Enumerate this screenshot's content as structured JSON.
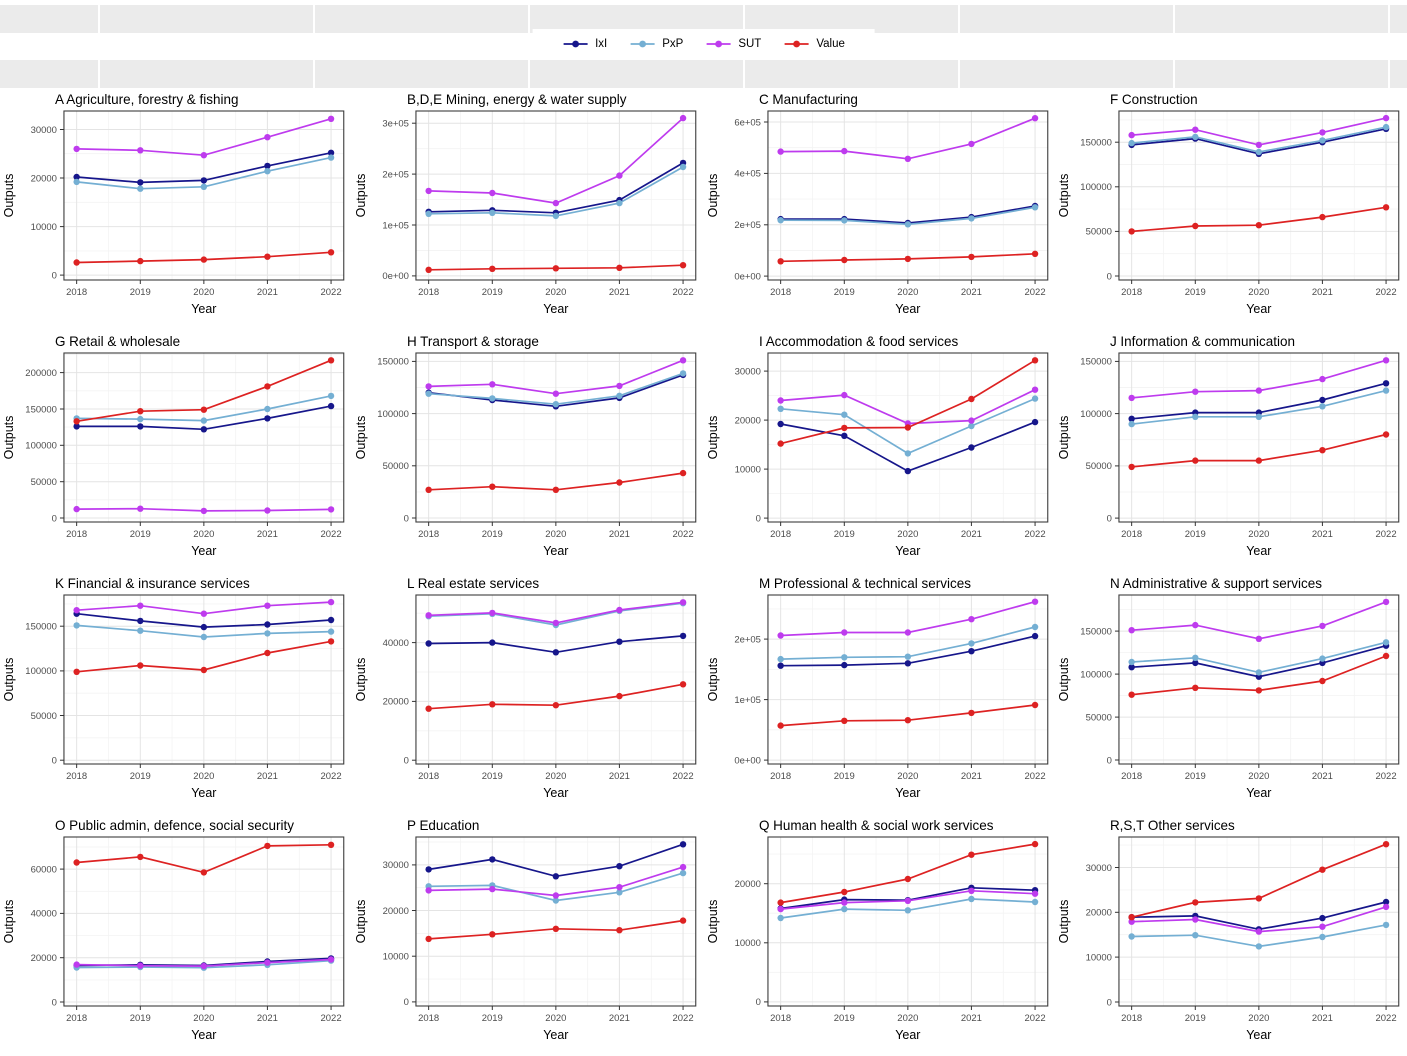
{
  "header": {
    "strip_color": "#EBEBEB"
  },
  "legend": {
    "items": [
      {
        "label": "IxI",
        "color": "#16168B"
      },
      {
        "label": "PxP",
        "color": "#74AFD3"
      },
      {
        "label": "SUT",
        "color": "#BE3BEE"
      },
      {
        "label": "Value",
        "color": "#DD2222"
      }
    ],
    "position": "top-center"
  },
  "chart_data": [
    {
      "type": "line",
      "title": "A Agriculture, forestry & fishing",
      "x": [
        2018,
        2019,
        2020,
        2021,
        2022
      ],
      "xlabel": "Year",
      "ylabel": "Outputs",
      "ylim": [
        -1000,
        33800
      ],
      "yticks": [
        0,
        10000,
        20000,
        30000
      ],
      "ytick_labels": [
        "0",
        "10000",
        "20000",
        "30000"
      ],
      "grid": true,
      "series": [
        {
          "name": "IxI",
          "values": [
            20200,
            19100,
            19500,
            22500,
            25200
          ]
        },
        {
          "name": "PxP",
          "values": [
            19200,
            17800,
            18200,
            21400,
            24200
          ]
        },
        {
          "name": "SUT",
          "values": [
            26000,
            25700,
            24700,
            28400,
            32200
          ]
        },
        {
          "name": "Value",
          "values": [
            2600,
            2900,
            3200,
            3800,
            4700
          ]
        }
      ]
    },
    {
      "type": "line",
      "title": "B,D,E Mining, energy & water supply",
      "x": [
        2018,
        2019,
        2020,
        2021,
        2022
      ],
      "xlabel": "Year",
      "ylabel": "Outputs",
      "ylim": [
        -8000,
        324000
      ],
      "yticks": [
        0,
        100000,
        200000,
        300000
      ],
      "ytick_labels": [
        "0e+00",
        "1e+05",
        "2e+05",
        "3e+05"
      ],
      "grid": true,
      "series": [
        {
          "name": "IxI",
          "values": [
            126000,
            129000,
            124000,
            149000,
            222000
          ]
        },
        {
          "name": "PxP",
          "values": [
            122000,
            124000,
            118000,
            143000,
            214000
          ]
        },
        {
          "name": "SUT",
          "values": [
            167000,
            163000,
            143000,
            197000,
            310000
          ]
        },
        {
          "name": "Value",
          "values": [
            12000,
            14000,
            15000,
            16000,
            21000
          ]
        }
      ]
    },
    {
      "type": "line",
      "title": "C Manufacturing",
      "x": [
        2018,
        2019,
        2020,
        2021,
        2022
      ],
      "xlabel": "Year",
      "ylabel": "Outputs",
      "ylim": [
        -15000,
        643000
      ],
      "yticks": [
        0,
        200000,
        400000,
        600000
      ],
      "ytick_labels": [
        "0e+00",
        "2e+05",
        "4e+05",
        "6e+05"
      ],
      "grid": true,
      "series": [
        {
          "name": "IxI",
          "values": [
            222000,
            222000,
            207000,
            230000,
            273000
          ]
        },
        {
          "name": "PxP",
          "values": [
            218000,
            217000,
            202000,
            225000,
            268000
          ]
        },
        {
          "name": "SUT",
          "values": [
            485000,
            487000,
            457000,
            515000,
            615000
          ]
        },
        {
          "name": "Value",
          "values": [
            58000,
            63000,
            67000,
            75000,
            87000
          ]
        }
      ]
    },
    {
      "type": "line",
      "title": "F Construction",
      "x": [
        2018,
        2019,
        2020,
        2021,
        2022
      ],
      "xlabel": "Year",
      "ylabel": "Outputs",
      "ylim": [
        -4500,
        185000
      ],
      "yticks": [
        0,
        50000,
        100000,
        150000
      ],
      "ytick_labels": [
        "0",
        "50000",
        "100000",
        "150000"
      ],
      "grid": true,
      "series": [
        {
          "name": "IxI",
          "values": [
            147000,
            154000,
            137000,
            150000,
            165000
          ]
        },
        {
          "name": "PxP",
          "values": [
            149000,
            156000,
            139000,
            152000,
            167000
          ]
        },
        {
          "name": "SUT",
          "values": [
            158000,
            164000,
            147000,
            161000,
            177000
          ]
        },
        {
          "name": "Value",
          "values": [
            50000,
            56000,
            57000,
            66000,
            77000
          ]
        }
      ]
    },
    {
      "type": "line",
      "title": "G Retail & wholesale",
      "x": [
        2018,
        2019,
        2020,
        2021,
        2022
      ],
      "xlabel": "Year",
      "ylabel": "Outputs",
      "ylim": [
        -5500,
        227000
      ],
      "yticks": [
        0,
        50000,
        100000,
        150000,
        200000
      ],
      "ytick_labels": [
        "0",
        "50000",
        "100000",
        "150000",
        "200000"
      ],
      "grid": true,
      "series": [
        {
          "name": "IxI",
          "values": [
            126000,
            126000,
            122000,
            137000,
            154000
          ]
        },
        {
          "name": "PxP",
          "values": [
            137000,
            136000,
            134000,
            150000,
            168000
          ]
        },
        {
          "name": "SUT",
          "values": [
            12300,
            12800,
            9800,
            10300,
            11800
          ]
        },
        {
          "name": "Value",
          "values": [
            133000,
            147000,
            149000,
            181000,
            217000
          ]
        }
      ]
    },
    {
      "type": "line",
      "title": "H Transport & storage",
      "x": [
        2018,
        2019,
        2020,
        2021,
        2022
      ],
      "xlabel": "Year",
      "ylabel": "Outputs",
      "ylim": [
        -3800,
        158000
      ],
      "yticks": [
        0,
        50000,
        100000,
        150000
      ],
      "ytick_labels": [
        "0",
        "50000",
        "100000",
        "150000"
      ],
      "grid": true,
      "series": [
        {
          "name": "IxI",
          "values": [
            120000,
            113000,
            107000,
            115000,
            137000
          ]
        },
        {
          "name": "PxP",
          "values": [
            119000,
            114500,
            109000,
            117000,
            138500
          ]
        },
        {
          "name": "SUT",
          "values": [
            126000,
            128000,
            119000,
            126500,
            151000
          ]
        },
        {
          "name": "Value",
          "values": [
            27000,
            30000,
            27000,
            34000,
            43000
          ]
        }
      ]
    },
    {
      "type": "line",
      "title": "I Accommodation & food services",
      "x": [
        2018,
        2019,
        2020,
        2021,
        2022
      ],
      "xlabel": "Year",
      "ylabel": "Outputs",
      "ylim": [
        -800,
        33700
      ],
      "yticks": [
        0,
        10000,
        20000,
        30000
      ],
      "ytick_labels": [
        "0",
        "10000",
        "20000",
        "30000"
      ],
      "grid": true,
      "series": [
        {
          "name": "IxI",
          "values": [
            19200,
            16800,
            9600,
            14400,
            19600
          ]
        },
        {
          "name": "PxP",
          "values": [
            22300,
            21100,
            13200,
            18800,
            24400
          ]
        },
        {
          "name": "SUT",
          "values": [
            24000,
            25100,
            19300,
            19900,
            26200
          ]
        },
        {
          "name": "Value",
          "values": [
            15200,
            18400,
            18500,
            24300,
            32200
          ]
        }
      ]
    },
    {
      "type": "line",
      "title": "J Information & communication",
      "x": [
        2018,
        2019,
        2020,
        2021,
        2022
      ],
      "xlabel": "Year",
      "ylabel": "Outputs",
      "ylim": [
        -3700,
        158000
      ],
      "yticks": [
        0,
        50000,
        100000,
        150000
      ],
      "ytick_labels": [
        "0",
        "50000",
        "100000",
        "150000"
      ],
      "grid": true,
      "series": [
        {
          "name": "IxI",
          "values": [
            95000,
            101000,
            101000,
            113000,
            129000
          ]
        },
        {
          "name": "PxP",
          "values": [
            90000,
            97000,
            97000,
            107000,
            122000
          ]
        },
        {
          "name": "SUT",
          "values": [
            115000,
            121000,
            122000,
            133000,
            151000
          ]
        },
        {
          "name": "Value",
          "values": [
            49000,
            55000,
            55000,
            65000,
            80000
          ]
        }
      ]
    },
    {
      "type": "line",
      "title": "K Financial & insurance services",
      "x": [
        2018,
        2019,
        2020,
        2021,
        2022
      ],
      "xlabel": "Year",
      "ylabel": "Outputs",
      "ylim": [
        -4300,
        185000
      ],
      "yticks": [
        0,
        50000,
        100000,
        150000
      ],
      "ytick_labels": [
        "0",
        "50000",
        "100000",
        "150000"
      ],
      "grid": true,
      "series": [
        {
          "name": "IxI",
          "values": [
            164000,
            156000,
            149000,
            152000,
            157000
          ]
        },
        {
          "name": "PxP",
          "values": [
            151000,
            145000,
            138000,
            142000,
            144000
          ]
        },
        {
          "name": "SUT",
          "values": [
            168000,
            173000,
            164000,
            173000,
            177000
          ]
        },
        {
          "name": "Value",
          "values": [
            99000,
            106000,
            101000,
            120000,
            133000
          ]
        }
      ]
    },
    {
      "type": "line",
      "title": "L Real estate services",
      "x": [
        2018,
        2019,
        2020,
        2021,
        2022
      ],
      "xlabel": "Year",
      "ylabel": "Outputs",
      "ylim": [
        -1300,
        56200
      ],
      "yticks": [
        0,
        20000,
        40000
      ],
      "ytick_labels": [
        "0",
        "20000",
        "40000"
      ],
      "grid": true,
      "series": [
        {
          "name": "IxI",
          "values": [
            39700,
            40000,
            36700,
            40300,
            42300
          ]
        },
        {
          "name": "PxP",
          "values": [
            49000,
            49800,
            46000,
            50800,
            53400
          ]
        },
        {
          "name": "SUT",
          "values": [
            49300,
            50100,
            46700,
            51100,
            53700
          ]
        },
        {
          "name": "Value",
          "values": [
            17500,
            19000,
            18700,
            21800,
            25800
          ]
        }
      ]
    },
    {
      "type": "line",
      "title": "M Professional & technical services",
      "x": [
        2018,
        2019,
        2020,
        2021,
        2022
      ],
      "xlabel": "Year",
      "ylabel": "Outputs",
      "ylim": [
        -6500,
        273000
      ],
      "yticks": [
        0,
        100000,
        200000
      ],
      "ytick_labels": [
        "0e+00",
        "1e+05",
        "2e+05"
      ],
      "grid": true,
      "series": [
        {
          "name": "IxI",
          "values": [
            156000,
            157000,
            160000,
            180000,
            205000
          ]
        },
        {
          "name": "PxP",
          "values": [
            167000,
            170000,
            171000,
            193000,
            220000
          ]
        },
        {
          "name": "SUT",
          "values": [
            206000,
            211000,
            211000,
            233000,
            262000
          ]
        },
        {
          "name": "Value",
          "values": [
            57000,
            65000,
            66000,
            78000,
            91000
          ]
        }
      ]
    },
    {
      "type": "line",
      "title": "N Administrative & support services",
      "x": [
        2018,
        2019,
        2020,
        2021,
        2022
      ],
      "xlabel": "Year",
      "ylabel": "Outputs",
      "ylim": [
        -4600,
        192000
      ],
      "yticks": [
        0,
        50000,
        100000,
        150000
      ],
      "ytick_labels": [
        "0",
        "50000",
        "100000",
        "150000"
      ],
      "grid": true,
      "series": [
        {
          "name": "IxI",
          "values": [
            108000,
            113000,
            97000,
            113000,
            133000
          ]
        },
        {
          "name": "PxP",
          "values": [
            114000,
            119000,
            102000,
            118000,
            137000
          ]
        },
        {
          "name": "SUT",
          "values": [
            151000,
            157000,
            141000,
            156000,
            184000
          ]
        },
        {
          "name": "Value",
          "values": [
            76000,
            84000,
            81000,
            92000,
            121000
          ]
        }
      ]
    },
    {
      "type": "line",
      "title": "O Public admin, defence, social security",
      "x": [
        2018,
        2019,
        2020,
        2021,
        2022
      ],
      "xlabel": "Year",
      "ylabel": "Outputs",
      "ylim": [
        -1800,
        74500
      ],
      "yticks": [
        0,
        20000,
        40000,
        60000
      ],
      "ytick_labels": [
        "0",
        "20000",
        "40000",
        "60000"
      ],
      "grid": true,
      "series": [
        {
          "name": "IxI",
          "values": [
            16500,
            16800,
            16500,
            18300,
            19700
          ]
        },
        {
          "name": "PxP",
          "values": [
            15600,
            15800,
            15500,
            16800,
            18700
          ]
        },
        {
          "name": "SUT",
          "values": [
            16900,
            16400,
            16200,
            17800,
            19200
          ]
        },
        {
          "name": "Value",
          "values": [
            63000,
            65500,
            58500,
            70500,
            71000
          ]
        }
      ]
    },
    {
      "type": "line",
      "title": "P Education",
      "x": [
        2018,
        2019,
        2020,
        2021,
        2022
      ],
      "xlabel": "Year",
      "ylabel": "Outputs",
      "ylim": [
        -900,
        36100
      ],
      "yticks": [
        0,
        10000,
        20000,
        30000
      ],
      "ytick_labels": [
        "0",
        "10000",
        "20000",
        "30000"
      ],
      "grid": true,
      "series": [
        {
          "name": "IxI",
          "values": [
            29000,
            31200,
            27500,
            29700,
            34500
          ]
        },
        {
          "name": "PxP",
          "values": [
            25300,
            25500,
            22200,
            24000,
            28200
          ]
        },
        {
          "name": "SUT",
          "values": [
            24400,
            24700,
            23300,
            25100,
            29500
          ]
        },
        {
          "name": "Value",
          "values": [
            13800,
            14800,
            16000,
            15700,
            17800
          ]
        }
      ]
    },
    {
      "type": "line",
      "title": "Q Human health & social work services",
      "x": [
        2018,
        2019,
        2020,
        2021,
        2022
      ],
      "xlabel": "Year",
      "ylabel": "Outputs",
      "ylim": [
        -700,
        27900
      ],
      "yticks": [
        0,
        10000,
        20000
      ],
      "ytick_labels": [
        "0",
        "10000",
        "20000"
      ],
      "grid": true,
      "series": [
        {
          "name": "IxI",
          "values": [
            15800,
            17300,
            17200,
            19300,
            18900
          ]
        },
        {
          "name": "PxP",
          "values": [
            14200,
            15700,
            15500,
            17400,
            16900
          ]
        },
        {
          "name": "SUT",
          "values": [
            15700,
            16800,
            17100,
            18800,
            18300
          ]
        },
        {
          "name": "Value",
          "values": [
            16800,
            18600,
            20800,
            24900,
            26700
          ]
        }
      ]
    },
    {
      "type": "line",
      "title": "R,S,T Other services",
      "x": [
        2018,
        2019,
        2020,
        2021,
        2022
      ],
      "xlabel": "Year",
      "ylabel": "Outputs",
      "ylim": [
        -900,
        36800
      ],
      "yticks": [
        0,
        10000,
        20000,
        30000
      ],
      "ytick_labels": [
        "0",
        "10000",
        "20000",
        "30000"
      ],
      "grid": true,
      "series": [
        {
          "name": "IxI",
          "values": [
            18900,
            19200,
            16200,
            18700,
            22300
          ]
        },
        {
          "name": "PxP",
          "values": [
            14600,
            14900,
            12400,
            14500,
            17200
          ]
        },
        {
          "name": "SUT",
          "values": [
            17900,
            18400,
            15700,
            16800,
            21200
          ]
        },
        {
          "name": "Value",
          "values": [
            18900,
            22200,
            23100,
            29500,
            35200
          ]
        }
      ]
    }
  ]
}
